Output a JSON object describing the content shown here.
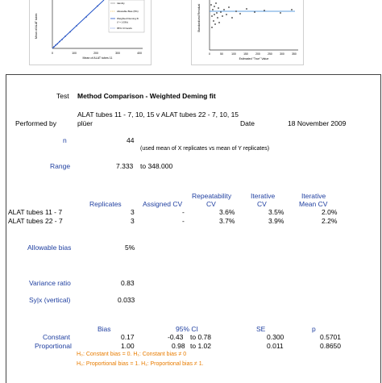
{
  "figures": {
    "left": {
      "x_axis_label": "Mean of ALAT tubes 11",
      "y_axis_label": "Mean of ALAT tubes",
      "x_ticks": [
        "0",
        "100",
        "200",
        "300",
        "400"
      ],
      "legend": [
        "Identity",
        "Allowable Bias (5%)",
        "Weighted Deming fit",
        "95% CI bands"
      ],
      "legend_sub": "(Y = 1.000x)"
    },
    "right": {
      "x_axis_label": "Estimated \"True\" Value",
      "y_axis_label": "Standardized Residual",
      "x_ticks": [
        "0",
        "50",
        "100",
        "150",
        "200",
        "250",
        "300",
        "350"
      ]
    }
  },
  "report": {
    "test_label": "Test",
    "test_value": "Method Comparison - Weighted Deming fit",
    "comparison_line1": "ALAT tubes 11 - 7, 10, 15  v  ALAT tubes 22 - 7, 10, 15",
    "performed_by_label": "Performed by",
    "performed_by_value": "plüer",
    "date_label": "Date",
    "date_value": "18 November 2009",
    "n_label": "n",
    "n_value": "44",
    "n_note": "(used mean of X replicates vs mean of Y replicates)",
    "range_label": "Range",
    "range_low": "7.333",
    "range_high": "to 348.000",
    "headers": {
      "replicates": "Replicates",
      "assigned_cv": "Assigned CV",
      "repeatability_cv_1": "Repeatability",
      "repeatability_cv_2": "CV",
      "iterative_cv_1": "Iterative",
      "iterative_cv_2": "CV",
      "iterative_mean_cv_1": "Iterative",
      "iterative_mean_cv_2": "Mean CV"
    },
    "rows": [
      {
        "name": "ALAT tubes 11 - 7",
        "replicates": "3",
        "assigned_cv": "-",
        "repeatability_cv": "3.6%",
        "iterative_cv": "3.5%",
        "iterative_mean_cv": "2.0%"
      },
      {
        "name": "ALAT tubes 22 - 7",
        "replicates": "3",
        "assigned_cv": "-",
        "repeatability_cv": "3.7%",
        "iterative_cv": "3.9%",
        "iterative_mean_cv": "2.2%"
      }
    ],
    "allowable_bias_label": "Allowable bias",
    "allowable_bias_value": "5%",
    "variance_ratio_label": "Variance ratio",
    "variance_ratio_value": "0.83",
    "syx_label": "Sy|x (vertical)",
    "syx_value": "0.033",
    "coef_headers": {
      "bias": "Bias",
      "ci": "95% CI",
      "se": "SE",
      "p": "p"
    },
    "constant": {
      "label": "Constant",
      "bias": "0.17",
      "ci_low": "-0.43",
      "ci_high": "to 0.78",
      "se": "0.300",
      "p": "0.5701"
    },
    "proportional": {
      "label": "Proportional",
      "bias": "1.00",
      "ci_low": "0.98",
      "ci_high": "to 1.02",
      "se": "0.011",
      "p": "0.8650"
    },
    "h_constant": "H₀: Constant bias = 0. H₁: Constant bias ≠ 0",
    "h_proportional": "H₀: Proportional bias = 1. H₁: Proportional bias ≠ 1."
  }
}
